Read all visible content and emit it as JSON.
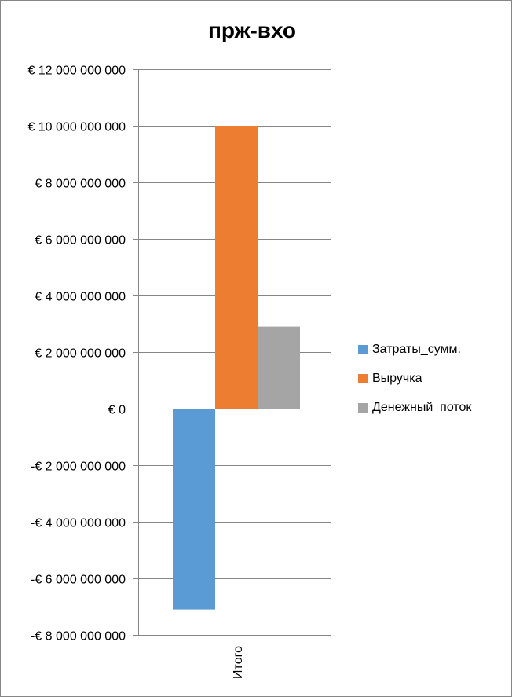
{
  "chart_data": {
    "type": "bar",
    "title": "прж-вхо",
    "categories": [
      "Итого"
    ],
    "series": [
      {
        "name": "Затраты_сумм.",
        "values": [
          -7100000000
        ],
        "color": "#5B9BD5"
      },
      {
        "name": "Выручка",
        "values": [
          10000000000
        ],
        "color": "#ED7D31"
      },
      {
        "name": "Денежный_поток",
        "values": [
          2900000000
        ],
        "color": "#A5A5A5"
      }
    ],
    "ylim": [
      -8000000000,
      12000000000
    ],
    "yticks": [
      12000000000,
      10000000000,
      8000000000,
      6000000000,
      4000000000,
      2000000000,
      0,
      -2000000000,
      -4000000000,
      -6000000000,
      -8000000000
    ],
    "ytick_labels": [
      "€ 12 000 000 000",
      "€ 10 000 000 000",
      "€ 8 000 000 000",
      "€ 6 000 000 000",
      "€ 4 000 000 000",
      "€ 2 000 000 000",
      "€ 0",
      "-€ 2 000 000 000",
      "-€ 4 000 000 000",
      "-€ 6 000 000 000",
      "-€ 8 000 000 000"
    ],
    "xlabel": "",
    "ylabel": "",
    "grid": true,
    "legend": "right"
  }
}
